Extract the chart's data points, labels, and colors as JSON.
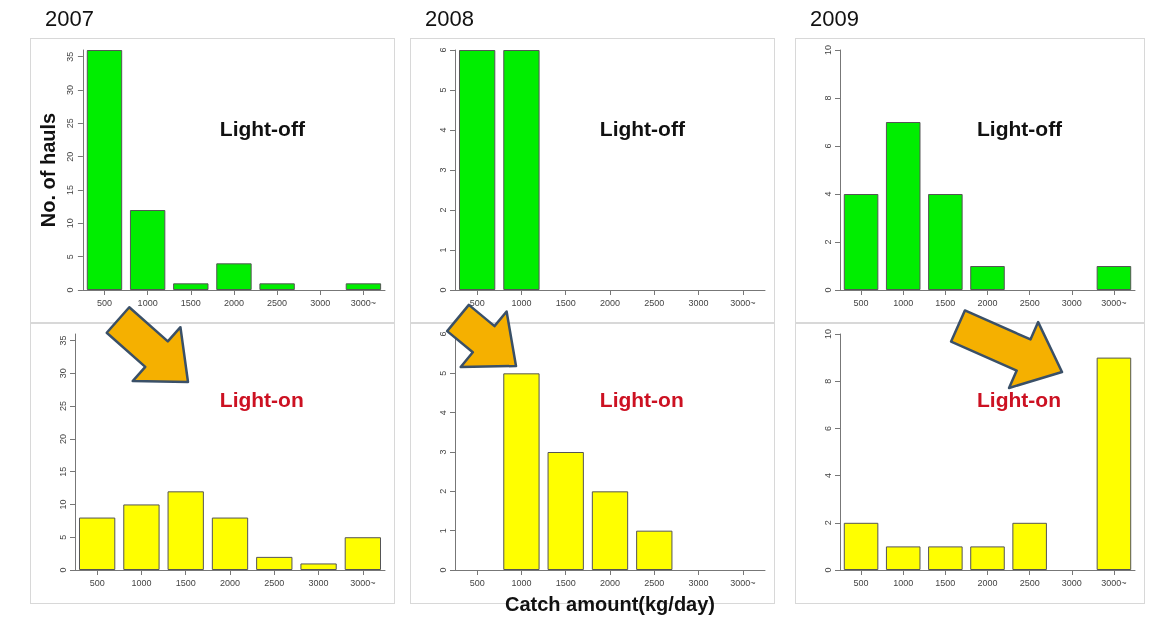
{
  "chart_data": [
    {
      "type": "bar",
      "title": "2007",
      "ylabel": "No. of hauls",
      "categories": [
        "500",
        "1000",
        "1500",
        "2000",
        "2500",
        "3000",
        "3000~"
      ],
      "values": [
        36,
        12,
        1,
        4,
        1,
        0,
        1
      ],
      "color": "#00ee00",
      "ylim": [
        0,
        36
      ],
      "yticks": [
        0,
        5,
        10,
        15,
        20,
        25,
        30,
        35
      ],
      "annotations": [
        "Light-off"
      ]
    },
    {
      "type": "bar",
      "title": "2008",
      "categories": [
        "500",
        "1000",
        "1500",
        "2000",
        "2500",
        "3000",
        "3000~"
      ],
      "values": [
        6,
        6,
        0,
        0,
        0,
        0,
        0
      ],
      "color": "#00ee00",
      "ylim": [
        0,
        6
      ],
      "yticks": [
        0,
        1,
        2,
        3,
        4,
        5,
        6
      ],
      "annotations": [
        "Light-off"
      ]
    },
    {
      "type": "bar",
      "title": "2009",
      "categories": [
        "500",
        "1000",
        "1500",
        "2000",
        "2500",
        "3000",
        "3000~"
      ],
      "values": [
        4,
        7,
        4,
        1,
        0,
        0,
        1
      ],
      "color": "#00ee00",
      "ylim": [
        0,
        10
      ],
      "yticks": [
        0,
        2,
        4,
        6,
        8,
        10
      ],
      "annotations": [
        "Light-off"
      ]
    },
    {
      "type": "bar",
      "categories": [
        "500",
        "1000",
        "1500",
        "2000",
        "2500",
        "3000",
        "3000~"
      ],
      "values": [
        8,
        10,
        12,
        8,
        2,
        1,
        5
      ],
      "color": "#ffff00",
      "ylim": [
        0,
        36
      ],
      "yticks": [
        0,
        5,
        10,
        15,
        20,
        25,
        30,
        35
      ],
      "annotations": [
        "Light-on"
      ]
    },
    {
      "type": "bar",
      "xlabel": "Catch amount(kg/day)",
      "categories": [
        "500",
        "1000",
        "1500",
        "2000",
        "2500",
        "3000",
        "3000~"
      ],
      "values": [
        0,
        5,
        3,
        2,
        1,
        0,
        0
      ],
      "color": "#ffff00",
      "ylim": [
        0,
        6
      ],
      "yticks": [
        0,
        1,
        2,
        3,
        4,
        5,
        6
      ],
      "annotations": [
        "Light-on"
      ]
    },
    {
      "type": "bar",
      "categories": [
        "500",
        "1000",
        "1500",
        "2000",
        "2500",
        "3000",
        "3000~"
      ],
      "values": [
        2,
        1,
        1,
        1,
        2,
        0,
        9
      ],
      "color": "#ffff00",
      "ylim": [
        0,
        10
      ],
      "yticks": [
        0,
        2,
        4,
        6,
        8,
        10
      ],
      "annotations": [
        "Light-on"
      ]
    }
  ]
}
